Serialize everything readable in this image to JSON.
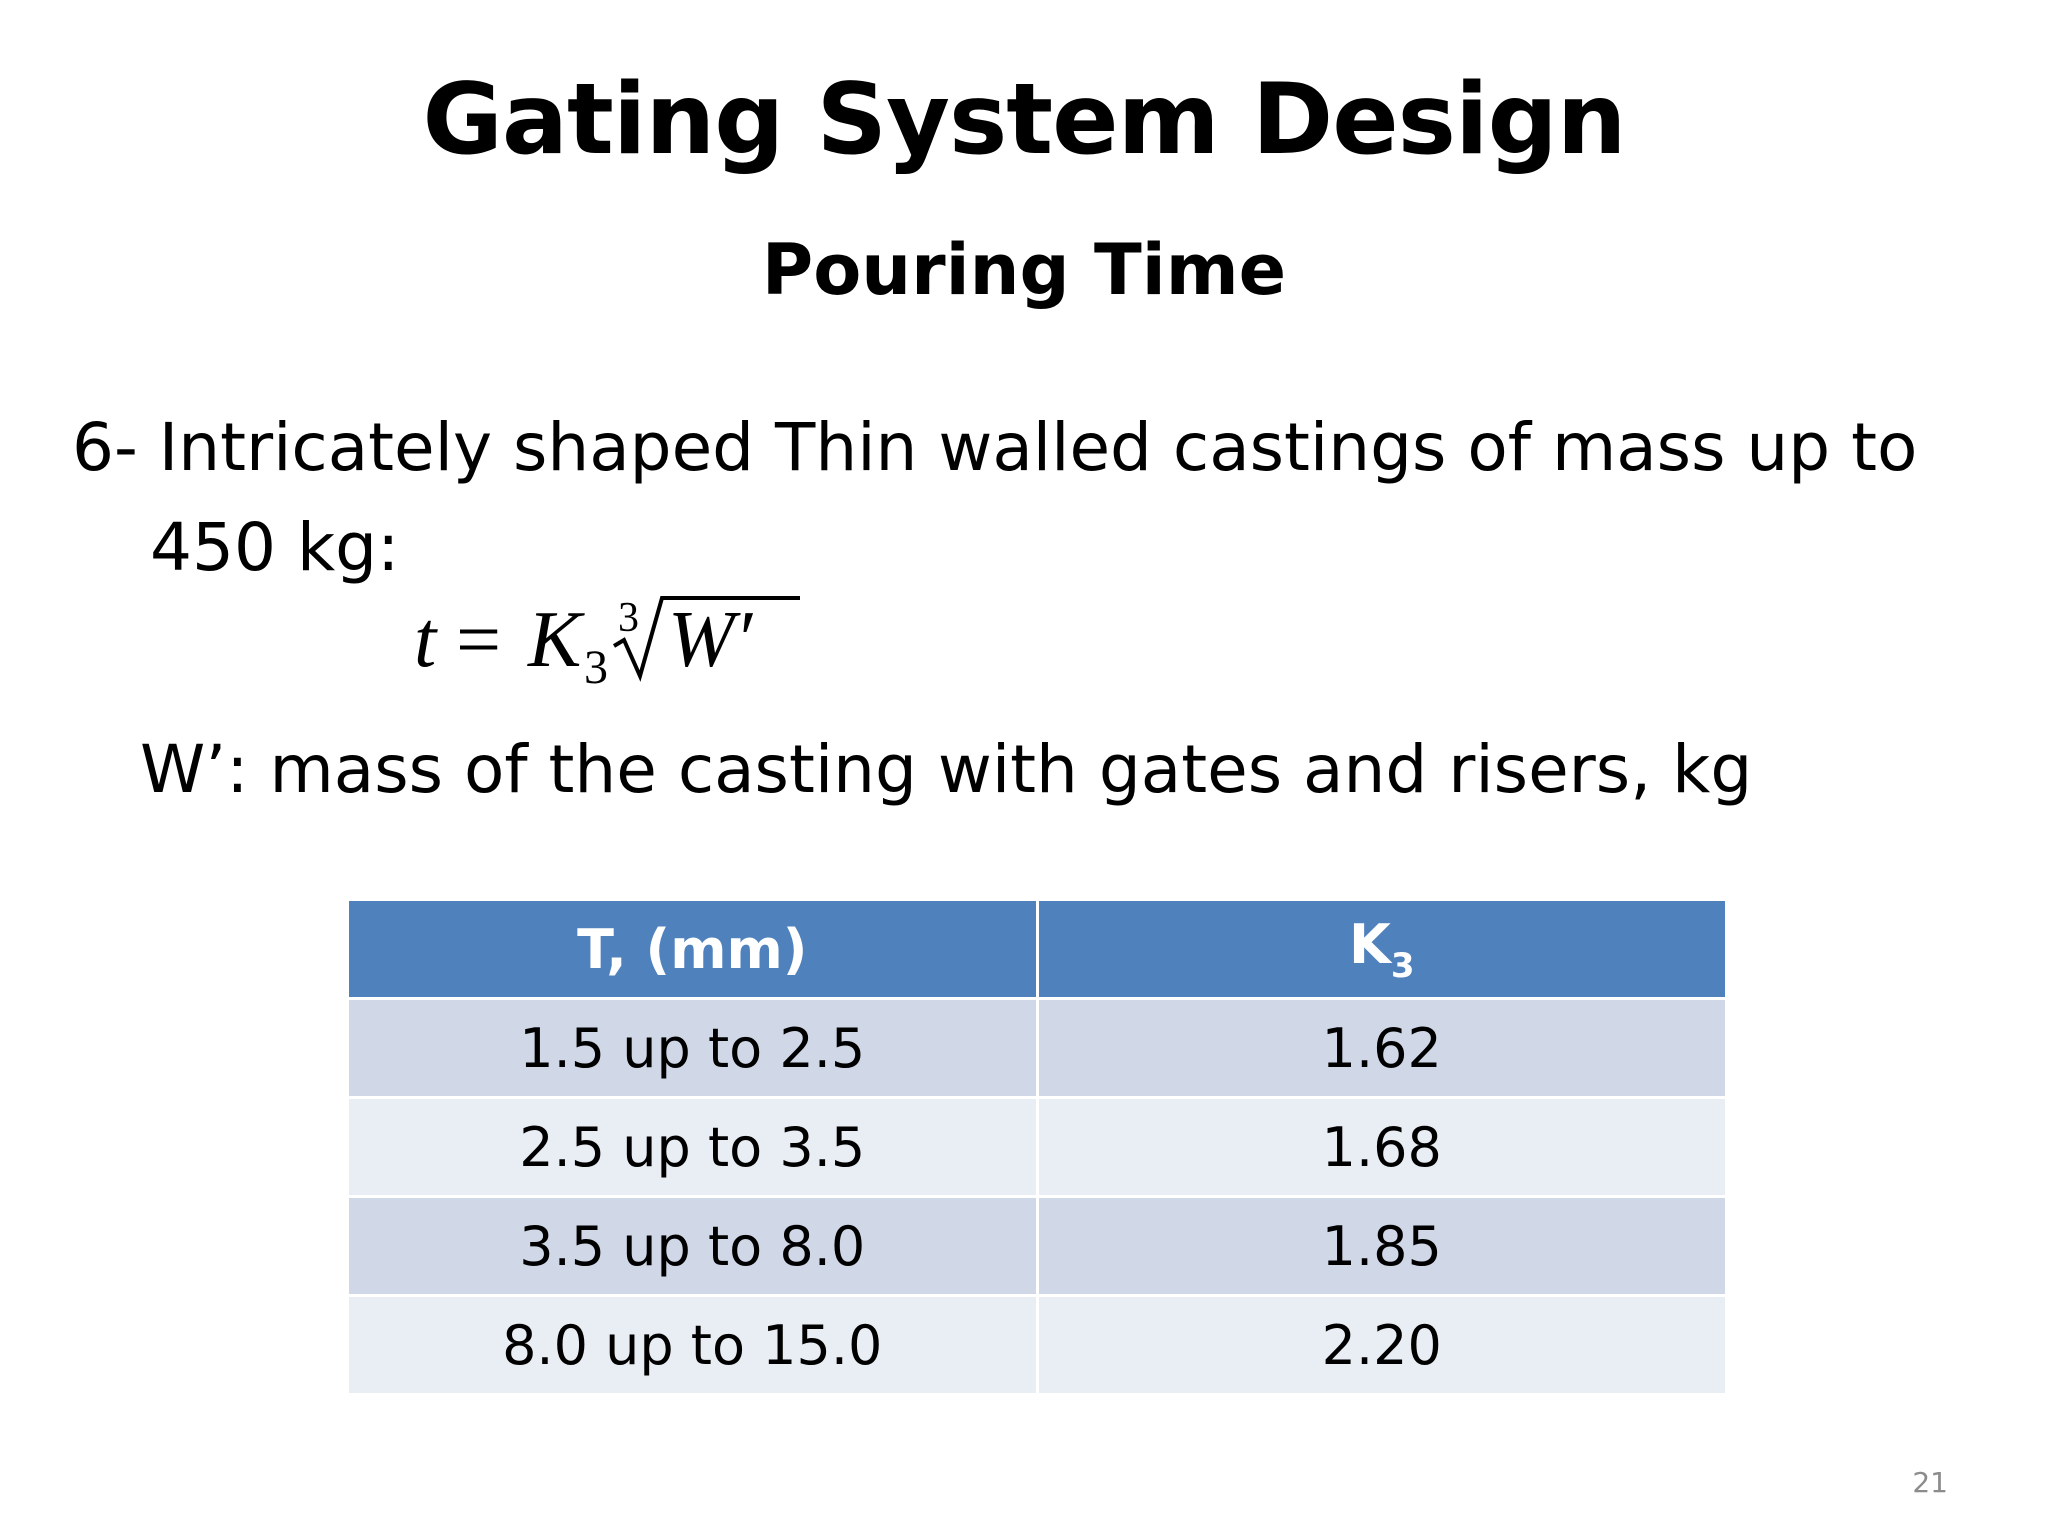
{
  "slide": {
    "title": "Gating System Design",
    "subtitle": "Pouring Time",
    "bullet": {
      "line1": "6- Intricately shaped Thin walled castings of mass up to",
      "line2": "450 kg:"
    },
    "formula": {
      "lhs": "t",
      "equals": "=",
      "coefficient": "K",
      "coefficient_subscript": "3",
      "root_index": "3",
      "radicand": "W′"
    },
    "definition": "W’: mass of the casting with gates and risers, kg",
    "table": {
      "header_col1": "T, (mm)",
      "header_col2": "K",
      "header_col2_subscript": "3",
      "header_color": "#4f81bd",
      "row_colors": [
        "#d0d8e8",
        "#e9edf4"
      ],
      "rows": [
        {
          "thickness": "1.5 up to 2.5",
          "k3": "1.62"
        },
        {
          "thickness": "2.5 up to 3.5",
          "k3": "1.68"
        },
        {
          "thickness": "3.5 up to 8.0",
          "k3": "1.85"
        },
        {
          "thickness": "8.0 up to 15.0",
          "k3": "2.20"
        }
      ]
    },
    "page_number": "21"
  }
}
